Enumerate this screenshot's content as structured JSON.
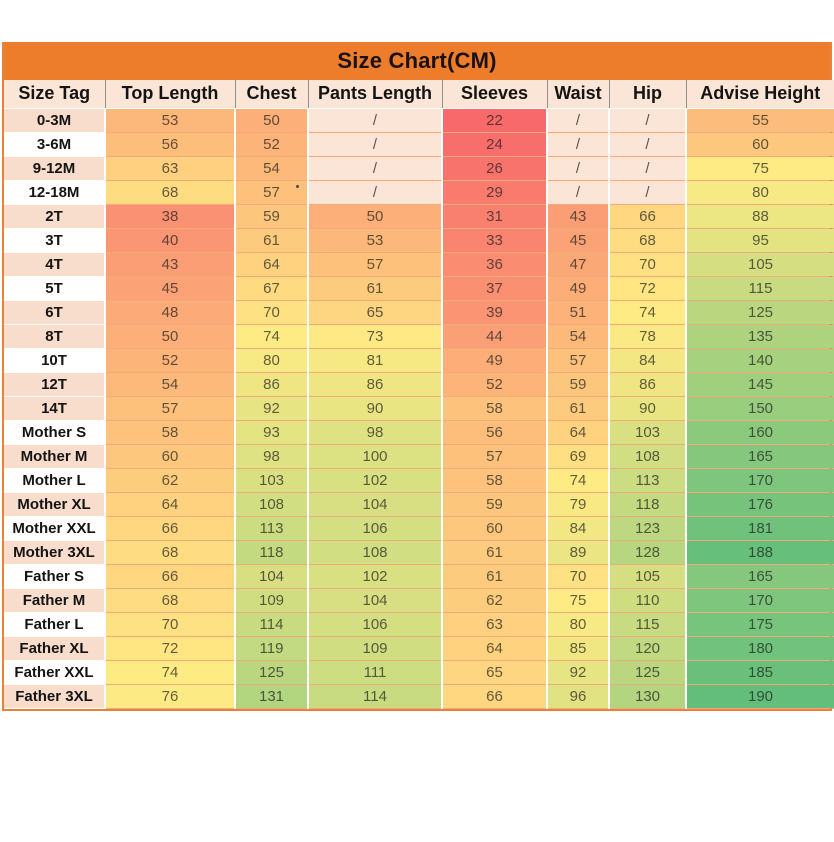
{
  "chart_data": {
    "type": "table",
    "title": "Size Chart(CM)",
    "columns": [
      "Size Tag",
      "Top Length",
      "Chest",
      "Pants Length",
      "Sleeves",
      "Waist",
      "Hip",
      "Advise Height"
    ],
    "rows": [
      {
        "tag": "0-3M",
        "shade": "peach",
        "values": [
          "53",
          "50",
          "/",
          "22",
          "/",
          "/",
          "55"
        ]
      },
      {
        "tag": "3-6M",
        "shade": "white",
        "values": [
          "56",
          "52",
          "/",
          "24",
          "/",
          "/",
          "60"
        ]
      },
      {
        "tag": "9-12M",
        "shade": "peach",
        "values": [
          "63",
          "54",
          "/",
          "26",
          "/",
          "/",
          "75"
        ]
      },
      {
        "tag": "12-18M",
        "shade": "white",
        "values": [
          "68",
          "57",
          "/",
          "29",
          "/",
          "/",
          "80"
        ]
      },
      {
        "tag": "2T",
        "shade": "peach",
        "values": [
          "38",
          "59",
          "50",
          "31",
          "43",
          "66",
          "88"
        ]
      },
      {
        "tag": "3T",
        "shade": "white",
        "values": [
          "40",
          "61",
          "53",
          "33",
          "45",
          "68",
          "95"
        ]
      },
      {
        "tag": "4T",
        "shade": "peach",
        "values": [
          "43",
          "64",
          "57",
          "36",
          "47",
          "70",
          "105"
        ]
      },
      {
        "tag": "5T",
        "shade": "white",
        "values": [
          "45",
          "67",
          "61",
          "37",
          "49",
          "72",
          "115"
        ]
      },
      {
        "tag": "6T",
        "shade": "peach",
        "values": [
          "48",
          "70",
          "65",
          "39",
          "51",
          "74",
          "125"
        ]
      },
      {
        "tag": "8T",
        "shade": "peach",
        "values": [
          "50",
          "74",
          "73",
          "44",
          "54",
          "78",
          "135"
        ]
      },
      {
        "tag": "10T",
        "shade": "white",
        "values": [
          "52",
          "80",
          "81",
          "49",
          "57",
          "84",
          "140"
        ]
      },
      {
        "tag": "12T",
        "shade": "peach",
        "values": [
          "54",
          "86",
          "86",
          "52",
          "59",
          "86",
          "145"
        ]
      },
      {
        "tag": "14T",
        "shade": "peach",
        "values": [
          "57",
          "92",
          "90",
          "58",
          "61",
          "90",
          "150"
        ]
      },
      {
        "tag": "Mother S",
        "shade": "white",
        "values": [
          "58",
          "93",
          "98",
          "56",
          "64",
          "103",
          "160"
        ]
      },
      {
        "tag": "Mother M",
        "shade": "peach",
        "values": [
          "60",
          "98",
          "100",
          "57",
          "69",
          "108",
          "165"
        ]
      },
      {
        "tag": "Mother L",
        "shade": "white",
        "values": [
          "62",
          "103",
          "102",
          "58",
          "74",
          "113",
          "170"
        ]
      },
      {
        "tag": "Mother XL",
        "shade": "peach",
        "values": [
          "64",
          "108",
          "104",
          "59",
          "79",
          "118",
          "176"
        ]
      },
      {
        "tag": "Mother XXL",
        "shade": "white",
        "values": [
          "66",
          "113",
          "106",
          "60",
          "84",
          "123",
          "181"
        ]
      },
      {
        "tag": "Mother 3XL",
        "shade": "peach",
        "values": [
          "68",
          "118",
          "108",
          "61",
          "89",
          "128",
          "188"
        ]
      },
      {
        "tag": "Father S",
        "shade": "white",
        "values": [
          "66",
          "104",
          "102",
          "61",
          "70",
          "105",
          "165"
        ]
      },
      {
        "tag": "Father M",
        "shade": "peach",
        "values": [
          "68",
          "109",
          "104",
          "62",
          "75",
          "110",
          "170"
        ]
      },
      {
        "tag": "Father L",
        "shade": "white",
        "values": [
          "70",
          "114",
          "106",
          "63",
          "80",
          "115",
          "175"
        ]
      },
      {
        "tag": "Father XL",
        "shade": "peach",
        "values": [
          "72",
          "119",
          "109",
          "64",
          "85",
          "120",
          "180"
        ]
      },
      {
        "tag": "Father XXL",
        "shade": "white",
        "values": [
          "74",
          "125",
          "111",
          "65",
          "92",
          "125",
          "185"
        ]
      },
      {
        "tag": "Father 3XL",
        "shade": "peach",
        "values": [
          "76",
          "131",
          "114",
          "66",
          "96",
          "130",
          "190"
        ]
      }
    ],
    "color_scale": {
      "min": {
        "value": 22,
        "color": "#F8696B"
      },
      "mid": {
        "value": 74,
        "color": "#FFEB84"
      },
      "max": {
        "value": 190,
        "color": "#63BE7B"
      }
    },
    "colors": {
      "title_bg": "#EE7D2B",
      "header_bg": "#FBE5D6",
      "tag_peach": "#F9DDCC",
      "slash_bg": "#FBE5D6",
      "grid_orange": "#E98A45",
      "outer_border": "#E8823A"
    },
    "layout_hints": {
      "grid": true,
      "legend": false
    }
  }
}
